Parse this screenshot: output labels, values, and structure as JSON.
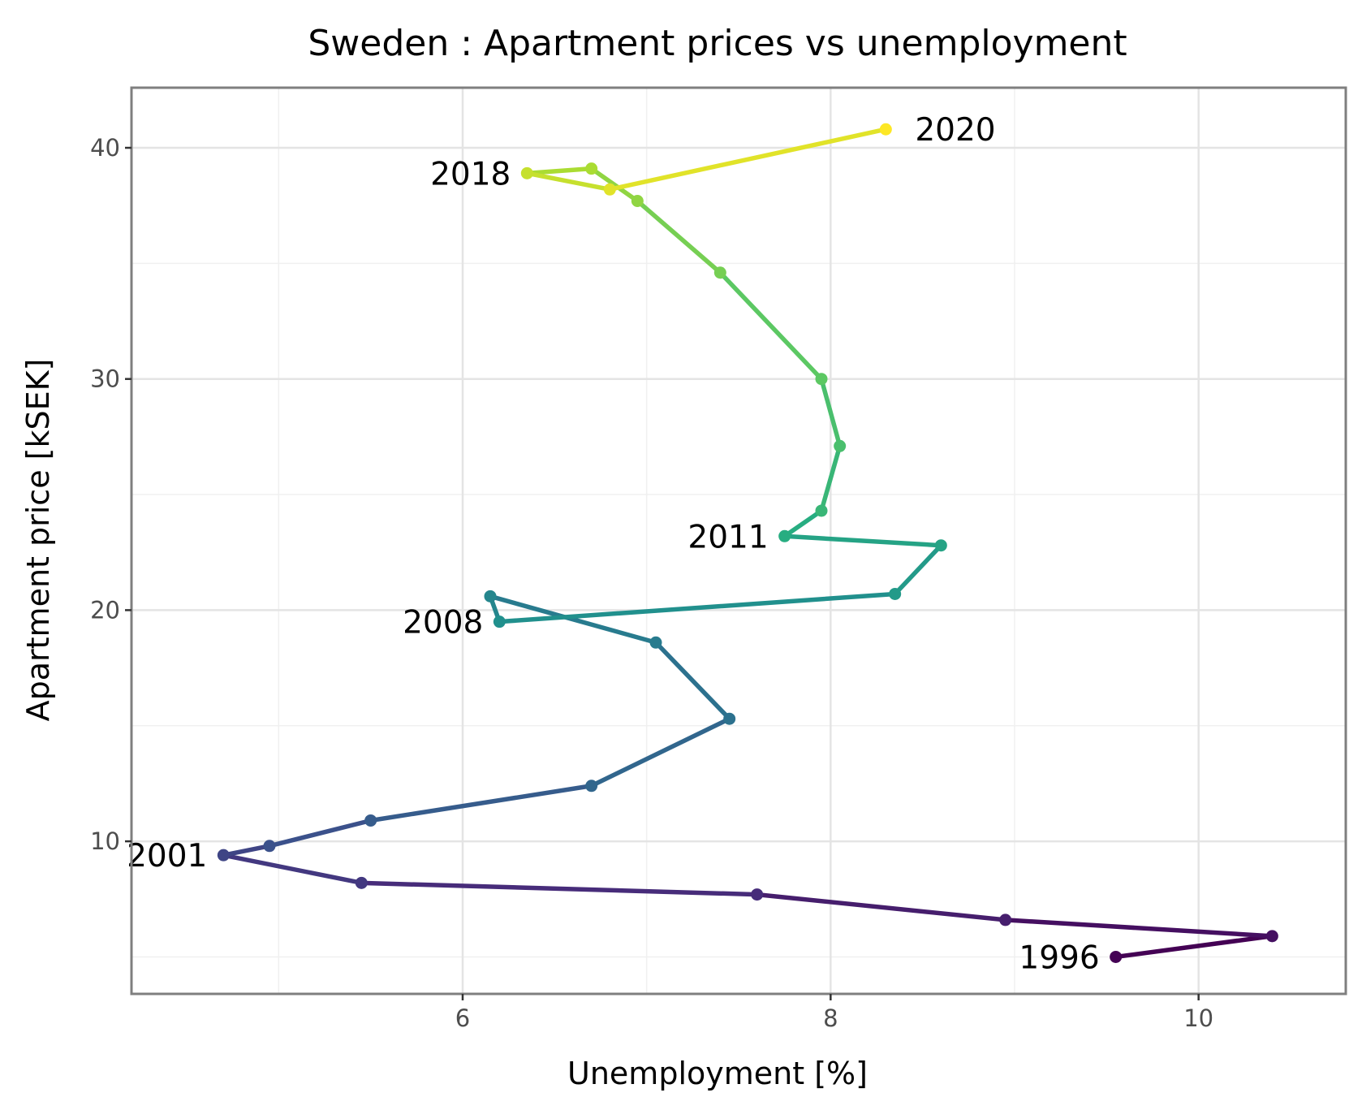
{
  "chart_data": {
    "type": "line",
    "title": "Sweden : Apartment prices vs unemployment",
    "xlabel": "Unemployment [%]",
    "ylabel": "Apartment price [kSEK]",
    "xlim": [
      4.2,
      10.8
    ],
    "ylim": [
      3.4,
      42.6
    ],
    "x_ticks": [
      6,
      8,
      10
    ],
    "x_tick_labels": [
      "6",
      "8",
      "10"
    ],
    "y_ticks": [
      10,
      20,
      30,
      40
    ],
    "y_tick_labels": [
      "10",
      "20",
      "30",
      "40"
    ],
    "x_minor_ticks": [
      5,
      7,
      9
    ],
    "y_minor_ticks": [
      5,
      15,
      25,
      35
    ],
    "grid": true,
    "legend": "none",
    "color_scale": "viridis",
    "points": [
      {
        "x": 9.55,
        "y": 5.0
      },
      {
        "x": 10.4,
        "y": 5.9
      },
      {
        "x": 8.95,
        "y": 6.6
      },
      {
        "x": 7.6,
        "y": 7.7
      },
      {
        "x": 5.45,
        "y": 8.2
      },
      {
        "x": 4.7,
        "y": 9.4
      },
      {
        "x": 4.95,
        "y": 9.8
      },
      {
        "x": 5.5,
        "y": 10.9
      },
      {
        "x": 6.7,
        "y": 12.4
      },
      {
        "x": 7.45,
        "y": 15.3
      },
      {
        "x": 7.05,
        "y": 18.6
      },
      {
        "x": 6.15,
        "y": 20.6
      },
      {
        "x": 6.2,
        "y": 19.5
      },
      {
        "x": 8.35,
        "y": 20.7
      },
      {
        "x": 8.6,
        "y": 22.8
      },
      {
        "x": 7.75,
        "y": 23.2
      },
      {
        "x": 7.95,
        "y": 24.3
      },
      {
        "x": 8.05,
        "y": 27.1
      },
      {
        "x": 7.95,
        "y": 30.0
      },
      {
        "x": 7.4,
        "y": 34.6
      },
      {
        "x": 6.95,
        "y": 37.7
      },
      {
        "x": 6.7,
        "y": 39.1
      },
      {
        "x": 6.35,
        "y": 38.9
      },
      {
        "x": 6.8,
        "y": 38.2
      },
      {
        "x": 8.3,
        "y": 40.8
      }
    ],
    "annotations": [
      {
        "text": "1996",
        "point": 0,
        "side": "left"
      },
      {
        "text": "2001",
        "point": 5,
        "side": "left"
      },
      {
        "text": "2008",
        "point": 12,
        "side": "left"
      },
      {
        "text": "2011",
        "point": 15,
        "side": "left"
      },
      {
        "text": "2018",
        "point": 22,
        "side": "left"
      },
      {
        "text": "2020",
        "point": 24,
        "side": "right"
      }
    ]
  }
}
